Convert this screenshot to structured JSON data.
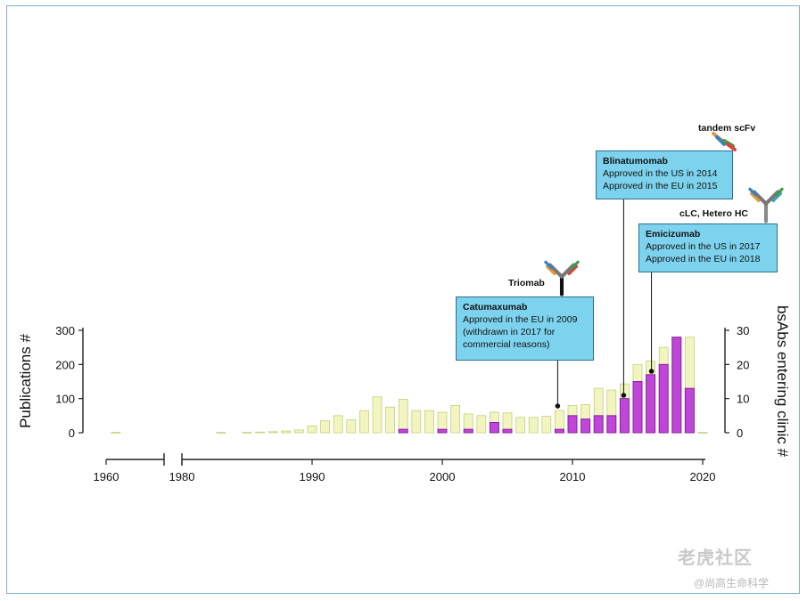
{
  "chart_data": {
    "type": "bar",
    "x": [
      1963,
      1983,
      1985,
      1986,
      1987,
      1988,
      1989,
      1990,
      1991,
      1992,
      1993,
      1994,
      1995,
      1996,
      1997,
      1998,
      1999,
      2000,
      2001,
      2002,
      2003,
      2004,
      2005,
      2006,
      2007,
      2008,
      2009,
      2010,
      2011,
      2012,
      2013,
      2014,
      2015,
      2016,
      2017,
      2018,
      2019,
      2020
    ],
    "series": [
      {
        "name": "",
        "axis": "left",
        "values": [
          1,
          1,
          1,
          2,
          3,
          5,
          8,
          20,
          35,
          50,
          38,
          65,
          105,
          75,
          98,
          65,
          65,
          60,
          80,
          55,
          50,
          60,
          58,
          45,
          45,
          48,
          65,
          80,
          82,
          130,
          125,
          143,
          200,
          210,
          250,
          280,
          280,
          1
        ]
      },
      {
        "name": "",
        "axis": "right",
        "values": [
          0,
          0,
          0,
          0,
          0,
          0,
          0,
          0,
          0,
          0,
          0,
          0,
          0,
          0,
          1,
          0,
          0,
          1,
          0,
          1,
          0,
          3,
          1,
          0,
          0,
          0,
          1,
          5,
          4,
          5,
          5,
          10,
          15,
          17,
          20,
          28,
          13,
          0
        ]
      }
    ],
    "left_axis": {
      "label": "Publications #",
      "ylim": [
        0,
        300
      ],
      "ticks": [
        "0",
        "100",
        "200",
        "300"
      ]
    },
    "right_axis": {
      "label": "bsAbs entering clinic #",
      "ylim": [
        0,
        30
      ],
      "ticks": [
        "0",
        "10",
        "20",
        "30"
      ]
    },
    "x_axis": {
      "xlim": [
        1955,
        2020
      ],
      "break": [
        1978,
        1980
      ],
      "ticks": [
        "1960",
        "1980",
        "1990",
        "2000",
        "2010",
        "2020"
      ]
    },
    "colors": {
      "publications": "#f2f5bf",
      "publications_edge": "#c4cf7e",
      "bsabs": "#c046d8",
      "bsabs_edge": "#8a1ea4"
    },
    "annotations": [
      {
        "id": "catumaxumab",
        "format": "Triomab",
        "name": "Catumaxumab",
        "lines": [
          "Approved in the EU in 2009",
          "(withdrawn in 2017 for",
          "commercial reasons)"
        ],
        "year": 2009
      },
      {
        "id": "blinatumomab",
        "format": "tandem scFv",
        "name": "Blinatumomab",
        "lines": [
          "Approved in the US in 2014",
          "Approved in the EU in 2015"
        ],
        "year": 2014
      },
      {
        "id": "emicizumab",
        "format": "cLC, Hetero HC",
        "name": "Emicizumab",
        "lines": [
          "Approved in the US in 2017",
          "Approved in the EU in 2018"
        ],
        "year": 2016
      }
    ]
  },
  "watermark": {
    "line1": "老虎社区",
    "line2": "@尚高生命科学"
  }
}
